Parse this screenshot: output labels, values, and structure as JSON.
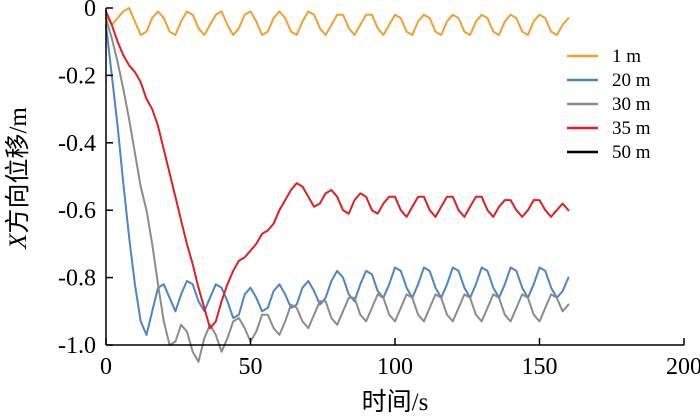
{
  "chart_data": {
    "type": "line",
    "xlabel": "时间/s",
    "ylabel_prefix": "X",
    "ylabel_suffix": "方向位移/m",
    "xlim": [
      0,
      200
    ],
    "ylim": [
      -1.0,
      0
    ],
    "xticks": [
      0,
      50,
      100,
      150,
      200
    ],
    "xtick_labels": [
      "0",
      "50",
      "100",
      "150",
      "200"
    ],
    "yticks": [
      0,
      -0.2,
      -0.4,
      -0.6,
      -0.8,
      -1.0
    ],
    "ytick_labels": [
      "0",
      "-0.2",
      "-0.4",
      "-0.6",
      "-0.8",
      "-1.0"
    ],
    "grid": false,
    "legend_position": "right",
    "series": [
      {
        "name": "1 m",
        "color": "#f0a030",
        "x": [
          0,
          2,
          4,
          6,
          8,
          10,
          12,
          14,
          16,
          18,
          20,
          22,
          24,
          26,
          28,
          30,
          32,
          34,
          36,
          38,
          40,
          42,
          44,
          46,
          48,
          50,
          52,
          54,
          56,
          58,
          60,
          62,
          64,
          66,
          68,
          70,
          72,
          74,
          76,
          78,
          80,
          82,
          84,
          86,
          88,
          90,
          92,
          94,
          96,
          98,
          100,
          102,
          104,
          106,
          108,
          110,
          112,
          114,
          116,
          118,
          120,
          122,
          124,
          126,
          128,
          130,
          132,
          134,
          136,
          138,
          140,
          142,
          144,
          146,
          148,
          150,
          152,
          154,
          156,
          158,
          160
        ],
        "values": [
          -0.02,
          -0.05,
          -0.03,
          -0.01,
          0.0,
          -0.04,
          -0.08,
          -0.07,
          -0.03,
          -0.01,
          -0.03,
          -0.07,
          -0.08,
          -0.04,
          -0.01,
          -0.02,
          -0.06,
          -0.08,
          -0.05,
          -0.02,
          -0.01,
          -0.05,
          -0.08,
          -0.06,
          -0.02,
          -0.01,
          -0.04,
          -0.08,
          -0.07,
          -0.03,
          -0.01,
          -0.03,
          -0.07,
          -0.08,
          -0.04,
          -0.01,
          -0.02,
          -0.06,
          -0.08,
          -0.05,
          -0.02,
          -0.02,
          -0.06,
          -0.08,
          -0.05,
          -0.02,
          -0.02,
          -0.06,
          -0.08,
          -0.05,
          -0.02,
          -0.03,
          -0.07,
          -0.08,
          -0.04,
          -0.02,
          -0.03,
          -0.07,
          -0.08,
          -0.04,
          -0.02,
          -0.03,
          -0.07,
          -0.08,
          -0.04,
          -0.02,
          -0.03,
          -0.07,
          -0.08,
          -0.04,
          -0.02,
          -0.03,
          -0.07,
          -0.08,
          -0.04,
          -0.02,
          -0.03,
          -0.07,
          -0.08,
          -0.05,
          -0.03
        ]
      },
      {
        "name": "20 m",
        "color": "#4a86c8",
        "x": [
          0,
          2,
          4,
          6,
          8,
          10,
          12,
          14,
          16,
          18,
          20,
          22,
          24,
          26,
          28,
          30,
          32,
          34,
          36,
          38,
          40,
          42,
          44,
          46,
          48,
          50,
          52,
          54,
          56,
          58,
          60,
          62,
          64,
          66,
          68,
          70,
          72,
          74,
          76,
          78,
          80,
          82,
          84,
          86,
          88,
          90,
          92,
          94,
          96,
          98,
          100,
          102,
          104,
          106,
          108,
          110,
          112,
          114,
          116,
          118,
          120,
          122,
          124,
          126,
          128,
          130,
          132,
          134,
          136,
          138,
          140,
          142,
          144,
          146,
          148,
          150,
          152,
          154,
          156,
          158,
          160
        ],
        "values": [
          -0.05,
          -0.2,
          -0.35,
          -0.52,
          -0.68,
          -0.82,
          -0.93,
          -0.97,
          -0.9,
          -0.83,
          -0.82,
          -0.86,
          -0.9,
          -0.85,
          -0.81,
          -0.82,
          -0.87,
          -0.9,
          -0.86,
          -0.82,
          -0.83,
          -0.87,
          -0.92,
          -0.91,
          -0.85,
          -0.83,
          -0.86,
          -0.9,
          -0.89,
          -0.84,
          -0.82,
          -0.85,
          -0.89,
          -0.88,
          -0.83,
          -0.81,
          -0.84,
          -0.88,
          -0.86,
          -0.81,
          -0.78,
          -0.8,
          -0.85,
          -0.87,
          -0.82,
          -0.78,
          -0.79,
          -0.84,
          -0.86,
          -0.82,
          -0.77,
          -0.78,
          -0.83,
          -0.86,
          -0.82,
          -0.77,
          -0.78,
          -0.83,
          -0.86,
          -0.82,
          -0.77,
          -0.78,
          -0.83,
          -0.86,
          -0.82,
          -0.77,
          -0.78,
          -0.83,
          -0.86,
          -0.82,
          -0.77,
          -0.78,
          -0.83,
          -0.86,
          -0.82,
          -0.77,
          -0.78,
          -0.83,
          -0.86,
          -0.84,
          -0.8
        ]
      },
      {
        "name": "30 m",
        "color": "#8c8c8c",
        "x": [
          0,
          2,
          4,
          6,
          8,
          10,
          12,
          14,
          16,
          18,
          20,
          22,
          24,
          26,
          28,
          30,
          32,
          34,
          36,
          38,
          40,
          42,
          44,
          46,
          48,
          50,
          52,
          54,
          56,
          58,
          60,
          62,
          64,
          66,
          68,
          70,
          72,
          74,
          76,
          78,
          80,
          82,
          84,
          86,
          88,
          90,
          92,
          94,
          96,
          98,
          100,
          102,
          104,
          106,
          108,
          110,
          112,
          114,
          116,
          118,
          120,
          122,
          124,
          126,
          128,
          130,
          132,
          134,
          136,
          138,
          140,
          142,
          144,
          146,
          148,
          150,
          152,
          154,
          156,
          158,
          160
        ],
        "values": [
          -0.03,
          -0.09,
          -0.16,
          -0.24,
          -0.33,
          -0.43,
          -0.53,
          -0.6,
          -0.7,
          -0.82,
          -0.93,
          -1.0,
          -0.99,
          -0.94,
          -0.96,
          -1.02,
          -1.05,
          -0.98,
          -0.94,
          -0.97,
          -1.02,
          -0.98,
          -0.93,
          -0.92,
          -0.95,
          -0.99,
          -0.96,
          -0.91,
          -0.91,
          -0.95,
          -0.97,
          -0.93,
          -0.88,
          -0.89,
          -0.93,
          -0.95,
          -0.91,
          -0.87,
          -0.87,
          -0.92,
          -0.94,
          -0.9,
          -0.86,
          -0.86,
          -0.91,
          -0.93,
          -0.89,
          -0.85,
          -0.86,
          -0.91,
          -0.93,
          -0.89,
          -0.85,
          -0.86,
          -0.91,
          -0.93,
          -0.89,
          -0.85,
          -0.86,
          -0.91,
          -0.93,
          -0.89,
          -0.85,
          -0.86,
          -0.91,
          -0.93,
          -0.89,
          -0.85,
          -0.86,
          -0.91,
          -0.93,
          -0.89,
          -0.85,
          -0.86,
          -0.91,
          -0.93,
          -0.89,
          -0.85,
          -0.86,
          -0.9,
          -0.88
        ]
      },
      {
        "name": "35 m",
        "color": "#e02020",
        "x": [
          0,
          2,
          4,
          6,
          8,
          10,
          12,
          14,
          16,
          18,
          20,
          22,
          24,
          26,
          28,
          30,
          32,
          34,
          36,
          38,
          40,
          42,
          44,
          46,
          48,
          50,
          52,
          54,
          56,
          58,
          60,
          62,
          64,
          66,
          68,
          70,
          72,
          74,
          76,
          78,
          80,
          82,
          84,
          86,
          88,
          90,
          92,
          94,
          96,
          98,
          100,
          102,
          104,
          106,
          108,
          110,
          112,
          114,
          116,
          118,
          120,
          122,
          124,
          126,
          128,
          130,
          132,
          134,
          136,
          138,
          140,
          142,
          144,
          146,
          148,
          150,
          152,
          154,
          156,
          158,
          160
        ],
        "values": [
          -0.01,
          -0.05,
          -0.1,
          -0.14,
          -0.17,
          -0.19,
          -0.22,
          -0.27,
          -0.3,
          -0.35,
          -0.42,
          -0.49,
          -0.56,
          -0.63,
          -0.7,
          -0.76,
          -0.83,
          -0.89,
          -0.95,
          -0.93,
          -0.87,
          -0.82,
          -0.78,
          -0.75,
          -0.74,
          -0.72,
          -0.7,
          -0.67,
          -0.66,
          -0.64,
          -0.6,
          -0.57,
          -0.54,
          -0.52,
          -0.53,
          -0.56,
          -0.59,
          -0.58,
          -0.55,
          -0.54,
          -0.56,
          -0.6,
          -0.61,
          -0.57,
          -0.55,
          -0.56,
          -0.6,
          -0.61,
          -0.58,
          -0.56,
          -0.56,
          -0.6,
          -0.62,
          -0.59,
          -0.56,
          -0.56,
          -0.6,
          -0.62,
          -0.59,
          -0.56,
          -0.56,
          -0.6,
          -0.62,
          -0.59,
          -0.56,
          -0.56,
          -0.6,
          -0.62,
          -0.59,
          -0.57,
          -0.57,
          -0.6,
          -0.62,
          -0.6,
          -0.57,
          -0.57,
          -0.6,
          -0.62,
          -0.6,
          -0.58,
          -0.6
        ]
      },
      {
        "name": "50 m",
        "color": "#000000",
        "x": [],
        "values": []
      }
    ]
  }
}
